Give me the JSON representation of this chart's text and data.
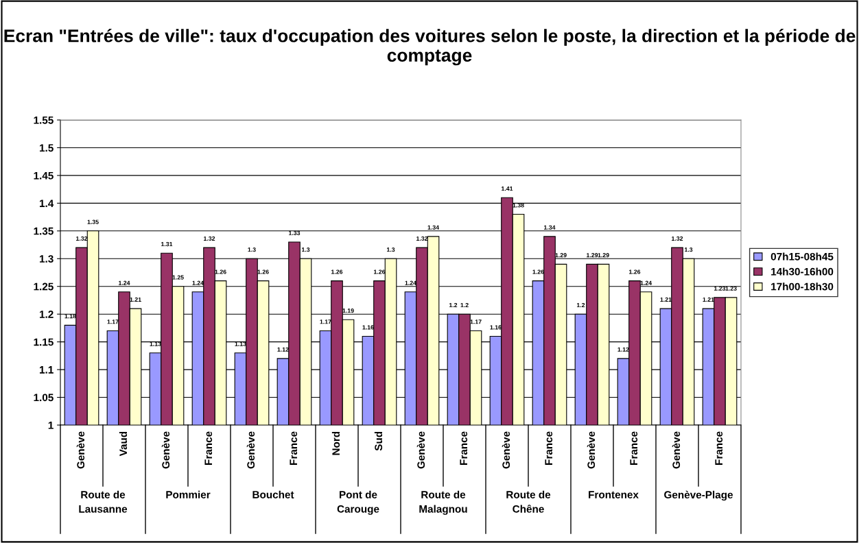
{
  "chart_data": {
    "type": "bar",
    "title": "Ecran \"Entrées de ville\": taux d'occupation des voitures selon le poste, la direction et la période de comptage",
    "categories": [
      "Genève",
      "Vaud",
      "Genève",
      "France",
      "Genève",
      "France",
      "Nord",
      "Sud",
      "Genève",
      "France",
      "Genève",
      "France",
      "Genève",
      "France",
      "Genève",
      "France"
    ],
    "annotations": [
      "Route de\nLausanne",
      "Pommier",
      "Bouchet",
      "Pont de\nCarouge",
      "Route de\nMalagnou",
      "Route de\nChêne",
      "Frontenex",
      "Genève-Plage"
    ],
    "series": [
      {
        "name": "07h15-08h45",
        "color": "#9999ff",
        "values": [
          1.18,
          1.17,
          1.13,
          1.24,
          1.13,
          1.12,
          1.17,
          1.16,
          1.24,
          1.2,
          1.16,
          1.26,
          1.2,
          1.12,
          1.21,
          1.21
        ]
      },
      {
        "name": "14h30-16h00",
        "color": "#993366",
        "values": [
          1.32,
          1.24,
          1.31,
          1.32,
          1.3,
          1.33,
          1.26,
          1.26,
          1.32,
          1.2,
          1.41,
          1.34,
          1.29,
          1.26,
          1.32,
          1.23
        ]
      },
      {
        "name": "17h00-18h30",
        "color": "#ffffcc",
        "values": [
          1.35,
          1.21,
          1.25,
          1.26,
          1.26,
          1.3,
          1.19,
          1.3,
          1.34,
          1.17,
          1.38,
          1.29,
          1.29,
          1.24,
          1.3,
          1.23
        ]
      }
    ],
    "ylim": [
      1,
      1.55
    ],
    "yticks": [
      1,
      1.05,
      1.1,
      1.15,
      1.2,
      1.25,
      1.3,
      1.35,
      1.4,
      1.45,
      1.5,
      1.55
    ],
    "grid": "y",
    "legend": "right",
    "data_labels": true
  }
}
